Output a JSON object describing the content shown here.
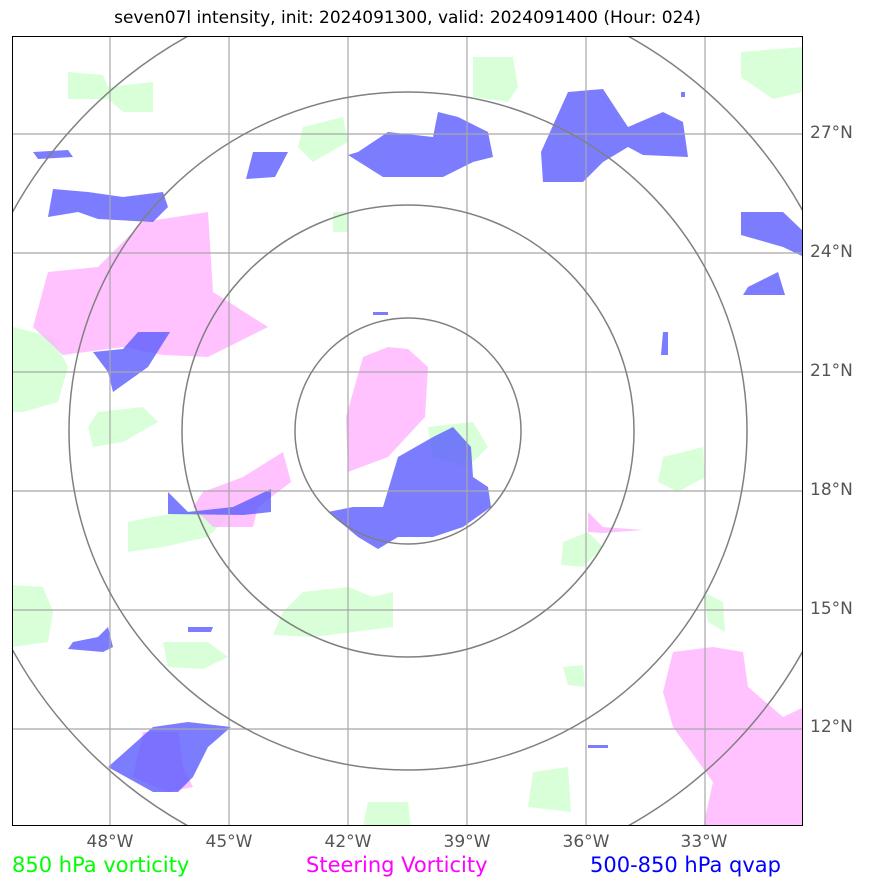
{
  "title": "seven07l intensity, init: 2024091300, valid: 2024091400 (Hour: 024)",
  "lat_ticks": [
    "27°N",
    "24°N",
    "21°N",
    "18°N",
    "15°N",
    "12°N"
  ],
  "lon_ticks": [
    "48°W",
    "45°W",
    "42°W",
    "39°W",
    "36°W",
    "33°W"
  ],
  "legend": {
    "vorticity_850": "850 hPa vorticity",
    "steering_vorticity": "Steering Vorticity",
    "qvap": "500-850 hPa qvap"
  },
  "colors": {
    "vorticity_850": "#00ff00",
    "steering_vorticity": "#ff00ff",
    "qvap": "#0000ff",
    "grid": "#a0a0a0",
    "range_rings": "#808080"
  },
  "range_rings_count": 4
}
